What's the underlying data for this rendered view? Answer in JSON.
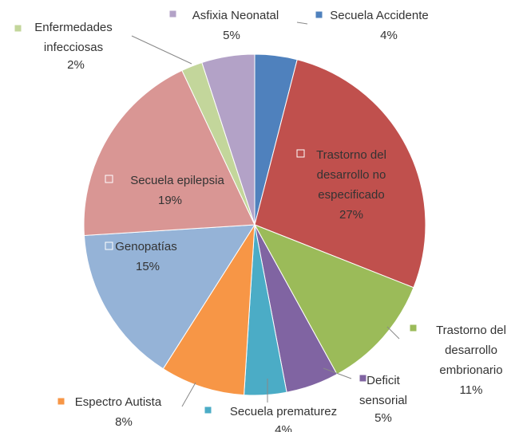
{
  "chart_data": {
    "type": "pie",
    "categories": [
      "Secuela Accidente",
      "Trastorno del desarrollo no especificado",
      "Trastorno del desarrollo embrionario",
      "Deficit sensorial",
      "Secuela prematurez",
      "Espectro Autista",
      "Genopatías",
      "Secuela epilepsia",
      "Enfermedades infecciosas",
      "Asfixia Neonatal"
    ],
    "values": [
      4,
      27,
      11,
      5,
      4,
      8,
      15,
      19,
      2,
      5
    ],
    "value_labels": [
      "4%",
      "27%",
      "11%",
      "5%",
      "4%",
      "8%",
      "15%",
      "19%",
      "2%",
      "5%"
    ],
    "colors": [
      "#4f81bd",
      "#c0504d",
      "#9bbb59",
      "#8064a2",
      "#4bacc6",
      "#f79646",
      "#95b3d7",
      "#d99694",
      "#c3d69b",
      "#b3a2c7"
    ]
  }
}
